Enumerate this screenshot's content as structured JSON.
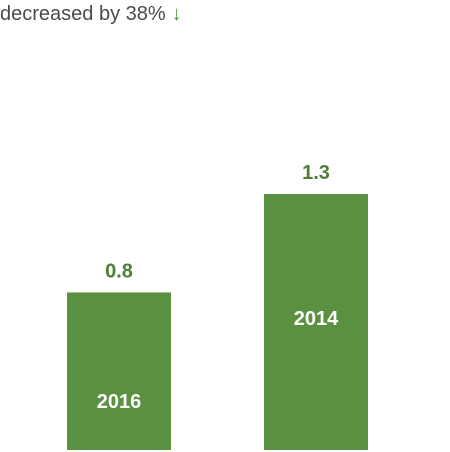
{
  "headline": {
    "text": "decreased by 38%",
    "arrow_icon": "arrow-down-icon",
    "arrow_glyph": "↓"
  },
  "colors": {
    "bar": "#5a9140",
    "value_label": "#4e7f36",
    "category_label": "#ffffff",
    "headline_text": "#4a4a4a"
  },
  "chart_data": {
    "type": "bar",
    "categories": [
      "2016",
      "2014"
    ],
    "values": [
      0.8,
      1.3
    ],
    "value_labels": [
      "0.8",
      "1.3"
    ],
    "title": "",
    "xlabel": "",
    "ylabel": "",
    "ylim": [
      0,
      1.3
    ],
    "grid": false
  }
}
